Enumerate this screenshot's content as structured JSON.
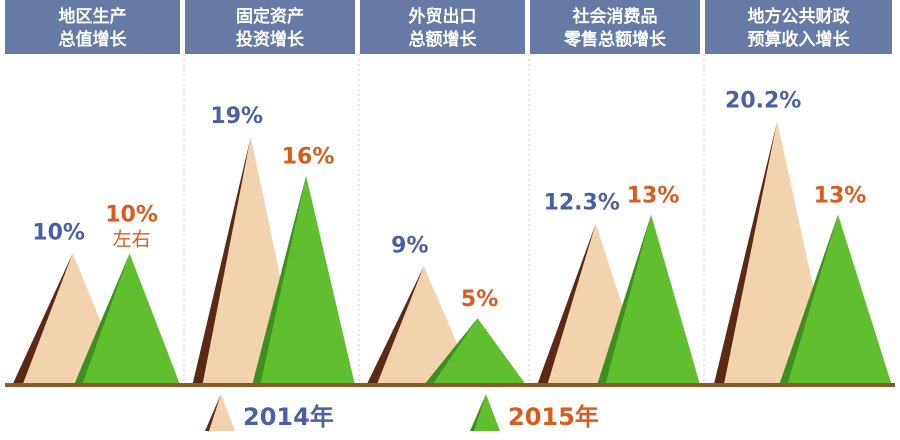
{
  "chart_data": {
    "type": "bar",
    "categories": [
      [
        "地区生产",
        "总值增长"
      ],
      [
        "固定资产",
        "投资增长"
      ],
      [
        "外贸出口",
        "总额增长"
      ],
      [
        "社会消费品",
        "零售总额增长"
      ],
      [
        "地方公共财政",
        "预算收入增长"
      ]
    ],
    "series": [
      {
        "name": "2014年",
        "values": [
          10,
          19,
          9,
          12.3,
          20.2
        ],
        "labels": [
          "10%",
          "19%",
          "9%",
          "12.3%",
          "20.2%"
        ],
        "color": "#f2d3ae",
        "shade": "#5a2a14",
        "label_color": "#4a5fa4"
      },
      {
        "name": "2015年",
        "values": [
          10,
          16,
          5,
          13,
          13
        ],
        "labels": [
          "10%",
          "16%",
          "5%",
          "13%",
          "13%"
        ],
        "label_notes": [
          "左右",
          "",
          "",
          "",
          ""
        ],
        "color": "#5fbf2e",
        "shade": "#3f8f1e",
        "label_color": "#dd5a1c"
      }
    ],
    "ylim": [
      0,
      22
    ],
    "legend_position": "bottom",
    "xlabel": "",
    "ylabel": ""
  },
  "colors": {
    "header_bg": "#667aa6",
    "header_text": "#ffffff",
    "baseline": "#8a5a2a",
    "divider": "#c9c9c9"
  }
}
